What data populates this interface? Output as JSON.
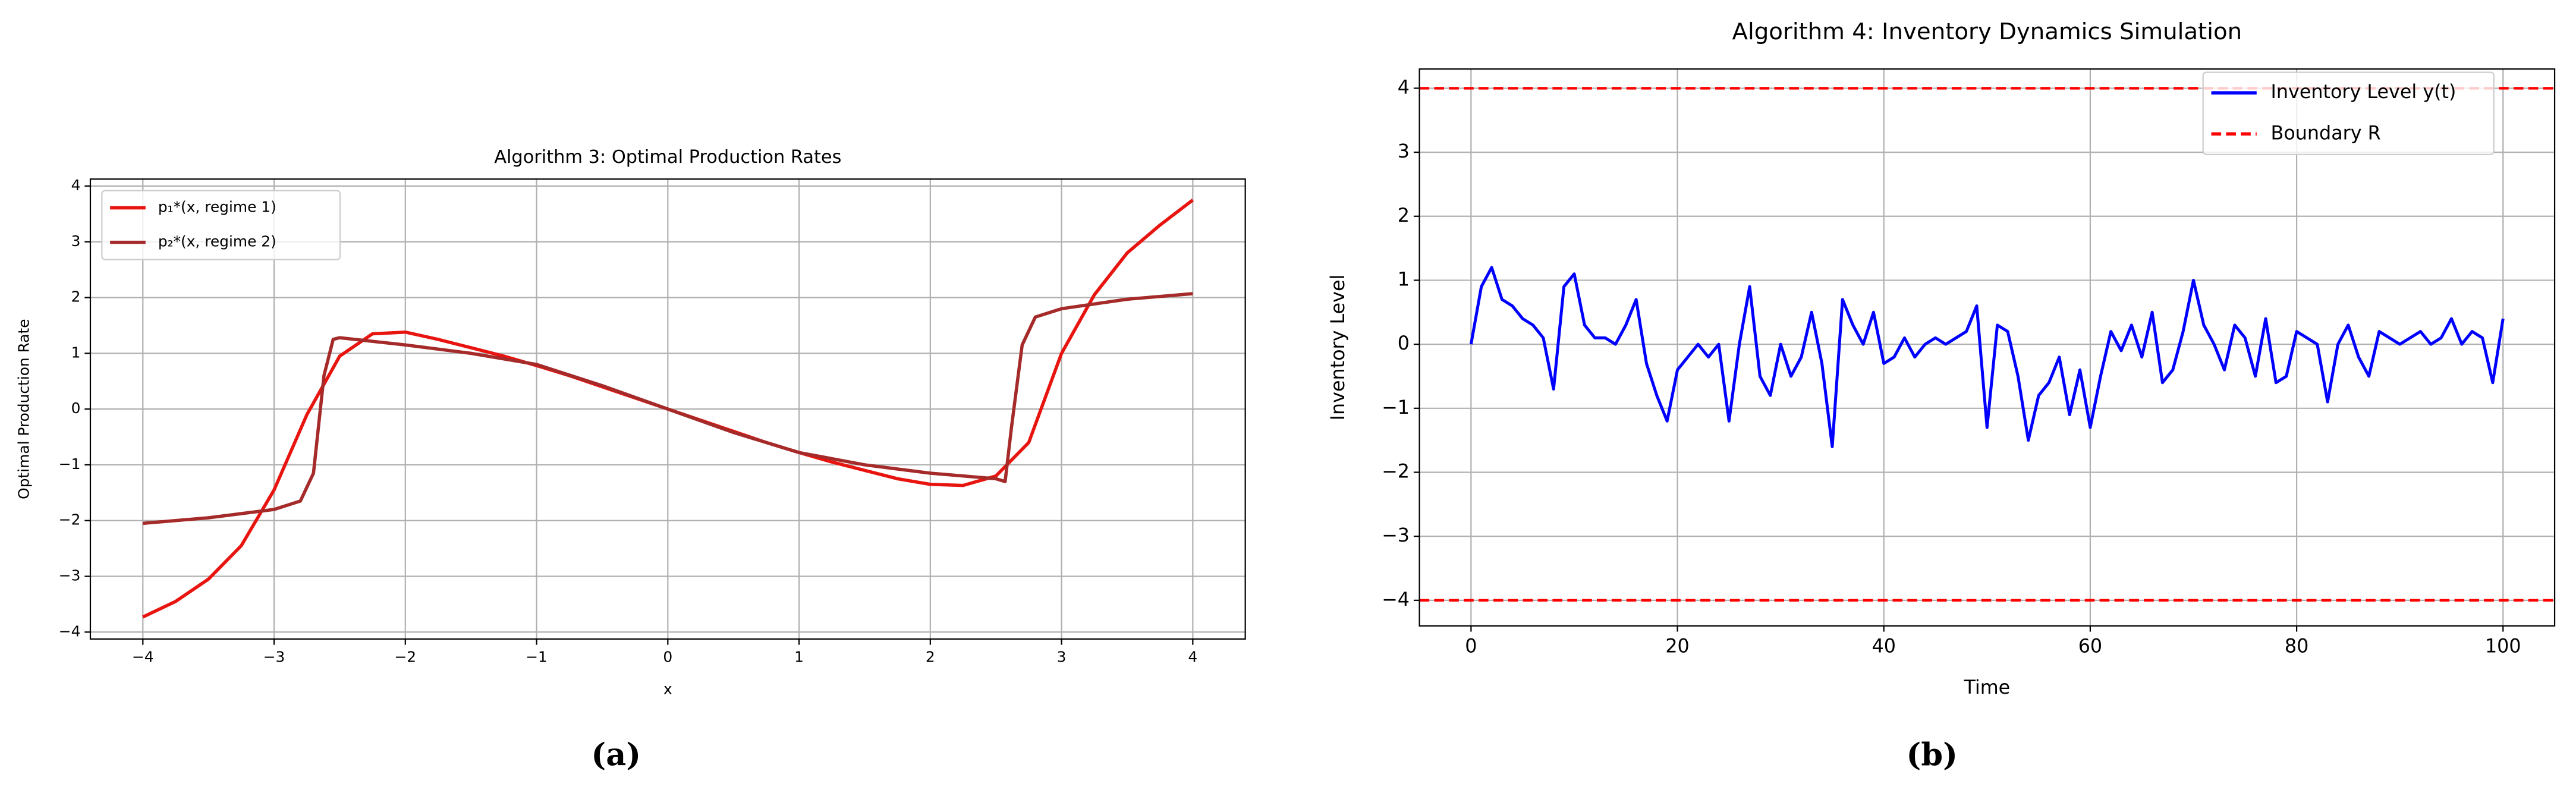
{
  "chart_data": [
    {
      "type": "line",
      "title": "Algorithm 3: Optimal Production Rates",
      "xlabel": "x",
      "ylabel": "Optimal Production Rate",
      "caption": "(a)",
      "xlim": [
        -4.4,
        4.4
      ],
      "ylim": [
        -4.125,
        4.125
      ],
      "grid": true,
      "legend": "upper left",
      "xticks": [
        {
          "value": -4,
          "label": "−4"
        },
        {
          "value": -3,
          "label": "−3"
        },
        {
          "value": -2,
          "label": "−2"
        },
        {
          "value": -1,
          "label": "−1"
        },
        0,
        1,
        2,
        3,
        4
      ],
      "yticks": [
        {
          "value": -4,
          "label": "−4"
        },
        {
          "value": -3,
          "label": "−3"
        },
        {
          "value": -2,
          "label": "−2"
        },
        {
          "value": -1,
          "label": "−1"
        },
        0,
        1,
        2,
        3,
        4
      ],
      "series": [
        {
          "name": "p₁*(x, regime 1)",
          "color": "#e8140f",
          "x": [
            -4,
            -3.75,
            -3.5,
            -3.25,
            -3,
            -2.75,
            -2.5,
            -2.25,
            -2,
            -1.75,
            -1.5,
            -1.25,
            -1,
            -0.75,
            -0.5,
            -0.25,
            0,
            0.25,
            0.5,
            0.75,
            1,
            1.25,
            1.5,
            1.75,
            2,
            2.25,
            2.5,
            2.75,
            3,
            3.25,
            3.5,
            3.75,
            4
          ],
          "values": [
            -3.73,
            -3.45,
            -3.05,
            -2.45,
            -1.45,
            -0.1,
            0.95,
            1.35,
            1.38,
            1.25,
            1.1,
            0.95,
            0.78,
            0.6,
            0.4,
            0.2,
            0,
            -0.2,
            -0.4,
            -0.6,
            -0.78,
            -0.95,
            -1.1,
            -1.25,
            -1.35,
            -1.37,
            -1.2,
            -0.6,
            1.0,
            2.05,
            2.8,
            3.3,
            3.75
          ]
        },
        {
          "name": "p₂*(x, regime 2)",
          "color": "#a52a2a",
          "x": [
            -4,
            -3.5,
            -3,
            -2.8,
            -2.7,
            -2.62,
            -2.55,
            -2.5,
            -2,
            -1.5,
            -1,
            -0.5,
            0,
            0.5,
            1,
            1.5,
            2,
            2.5,
            2.57,
            2.62,
            2.7,
            2.8,
            3,
            3.5,
            4
          ],
          "values": [
            -2.05,
            -1.95,
            -1.8,
            -1.65,
            -1.15,
            0.6,
            1.25,
            1.28,
            1.15,
            1.0,
            0.8,
            0.42,
            0,
            -0.42,
            -0.78,
            -1.0,
            -1.15,
            -1.25,
            -1.3,
            -0.3,
            1.15,
            1.65,
            1.8,
            1.97,
            2.07
          ]
        }
      ]
    },
    {
      "type": "line",
      "title": "Algorithm 4: Inventory Dynamics Simulation",
      "xlabel": "Time",
      "ylabel": "Inventory Level",
      "caption": "(b)",
      "xlim": [
        -5,
        105
      ],
      "ylim": [
        -4.4,
        4.3
      ],
      "grid": true,
      "legend": "upper right",
      "xticks": [
        0,
        20,
        40,
        60,
        80,
        100
      ],
      "yticks": [
        {
          "value": -4,
          "label": "−4"
        },
        {
          "value": -3,
          "label": "−3"
        },
        {
          "value": -2,
          "label": "−2"
        },
        {
          "value": -1,
          "label": "−1"
        },
        0,
        1,
        2,
        3,
        4
      ],
      "x": [
        0,
        1,
        2,
        3,
        4,
        5,
        6,
        7,
        8,
        9,
        10,
        11,
        12,
        13,
        14,
        15,
        16,
        17,
        18,
        19,
        20,
        21,
        22,
        23,
        24,
        25,
        26,
        27,
        28,
        29,
        30,
        31,
        32,
        33,
        34,
        35,
        36,
        37,
        38,
        39,
        40,
        41,
        42,
        43,
        44,
        45,
        46,
        47,
        48,
        49,
        50,
        51,
        52,
        53,
        54,
        55,
        56,
        57,
        58,
        59,
        60,
        61,
        62,
        63,
        64,
        65,
        66,
        67,
        68,
        69,
        70,
        71,
        72,
        73,
        74,
        75,
        76,
        77,
        78,
        79,
        80,
        81,
        82,
        83,
        84,
        85,
        86,
        87,
        88,
        89,
        90,
        91,
        92,
        93,
        94,
        95,
        96,
        97,
        98,
        99,
        100
      ],
      "series": [
        {
          "name": "Inventory Level y(t)",
          "color": "#0000ff",
          "values": [
            0,
            0.9,
            1.2,
            0.7,
            0.6,
            0.4,
            0.3,
            0.1,
            -0.7,
            0.9,
            1.1,
            0.3,
            0.1,
            0.1,
            0,
            0.3,
            0.7,
            -0.3,
            -0.8,
            -1.2,
            -0.4,
            -0.2,
            0,
            -0.2,
            0,
            -1.2,
            0,
            0.9,
            -0.5,
            -0.8,
            0,
            -0.5,
            -0.2,
            0.5,
            -0.3,
            -1.6,
            0.7,
            0.3,
            0,
            0.5,
            -0.3,
            -0.2,
            0.1,
            -0.2,
            0,
            0.1,
            0,
            0.1,
            0.2,
            0.6,
            -1.3,
            0.3,
            0.2,
            -0.5,
            -1.5,
            -0.8,
            -0.6,
            -0.2,
            -1.1,
            -0.4,
            -1.3,
            -0.5,
            0.2,
            -0.1,
            0.3,
            -0.2,
            0.5,
            -0.6,
            -0.4,
            0.2,
            1.0,
            0.3,
            0,
            -0.4,
            0.3,
            0.1,
            -0.5,
            0.4,
            -0.6,
            -0.5,
            0.2,
            0.1,
            0,
            -0.9,
            0,
            0.3,
            -0.2,
            -0.5,
            0.2,
            0.1,
            0,
            0.1,
            0.2,
            0,
            0.1,
            0.4,
            0,
            0.2,
            0.1,
            -0.6,
            0.4
          ]
        }
      ],
      "hlines": {
        "name": "Boundary R",
        "color": "#ff0000",
        "values": [
          4,
          -4
        ]
      }
    }
  ]
}
